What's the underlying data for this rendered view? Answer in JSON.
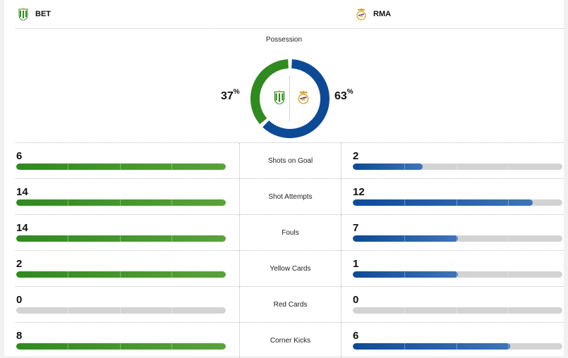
{
  "home": {
    "abbr": "BET",
    "color": "#2f8a1f",
    "crest_icon": "real-betis-crest-icon",
    "possession": 37
  },
  "away": {
    "abbr": "RMA",
    "color": "#0d4a96",
    "crest_icon": "real-madrid-crest-icon",
    "possession": 63
  },
  "possession_title": "Possession",
  "percent_sign": "%",
  "stats": [
    {
      "label": "Shots on Goal",
      "home": "6",
      "away": "2",
      "home_fill": 1.0,
      "away_fill": 0.333
    },
    {
      "label": "Shot Attempts",
      "home": "14",
      "away": "12",
      "home_fill": 1.0,
      "away_fill": 0.857
    },
    {
      "label": "Fouls",
      "home": "14",
      "away": "7",
      "home_fill": 1.0,
      "away_fill": 0.5
    },
    {
      "label": "Yellow Cards",
      "home": "2",
      "away": "1",
      "home_fill": 1.0,
      "away_fill": 0.5
    },
    {
      "label": "Red Cards",
      "home": "0",
      "away": "0",
      "home_fill": 0,
      "away_fill": 0
    },
    {
      "label": "Corner Kicks",
      "home": "8",
      "away": "6",
      "home_fill": 1.0,
      "away_fill": 0.75
    }
  ]
}
